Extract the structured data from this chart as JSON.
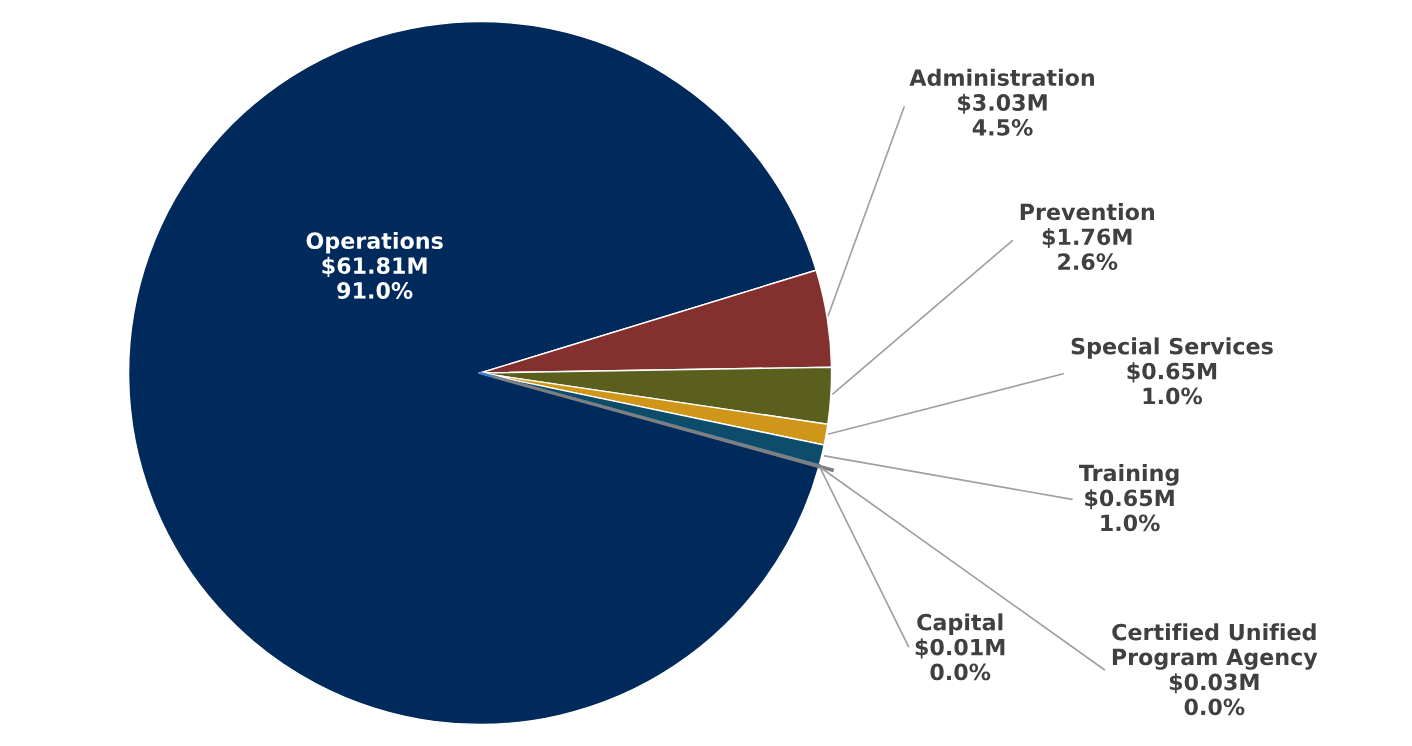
{
  "chart_data": {
    "type": "pie",
    "categories": [
      "Operations",
      "Administration",
      "Prevention",
      "Special Services",
      "Training",
      "Capital",
      "Certified Unified Program Agency"
    ],
    "values": [
      61.81,
      3.03,
      1.76,
      0.65,
      0.65,
      0.01,
      0.03
    ],
    "value_labels": [
      "$61.81M",
      "$3.03M",
      "$1.76M",
      "$0.65M",
      "$0.65M",
      "$0.01M",
      "$0.03M"
    ],
    "annotations": [
      "91.0%",
      "4.5%",
      "2.6%",
      "1.0%",
      "1.0%",
      "0.0%",
      "0.0%"
    ],
    "colors": [
      "#002a5c",
      "#84302e",
      "#5a5f1e",
      "#d0961a",
      "#0d4d6b",
      "#4a7ebb",
      "#7f7f7f"
    ],
    "legend": false
  }
}
